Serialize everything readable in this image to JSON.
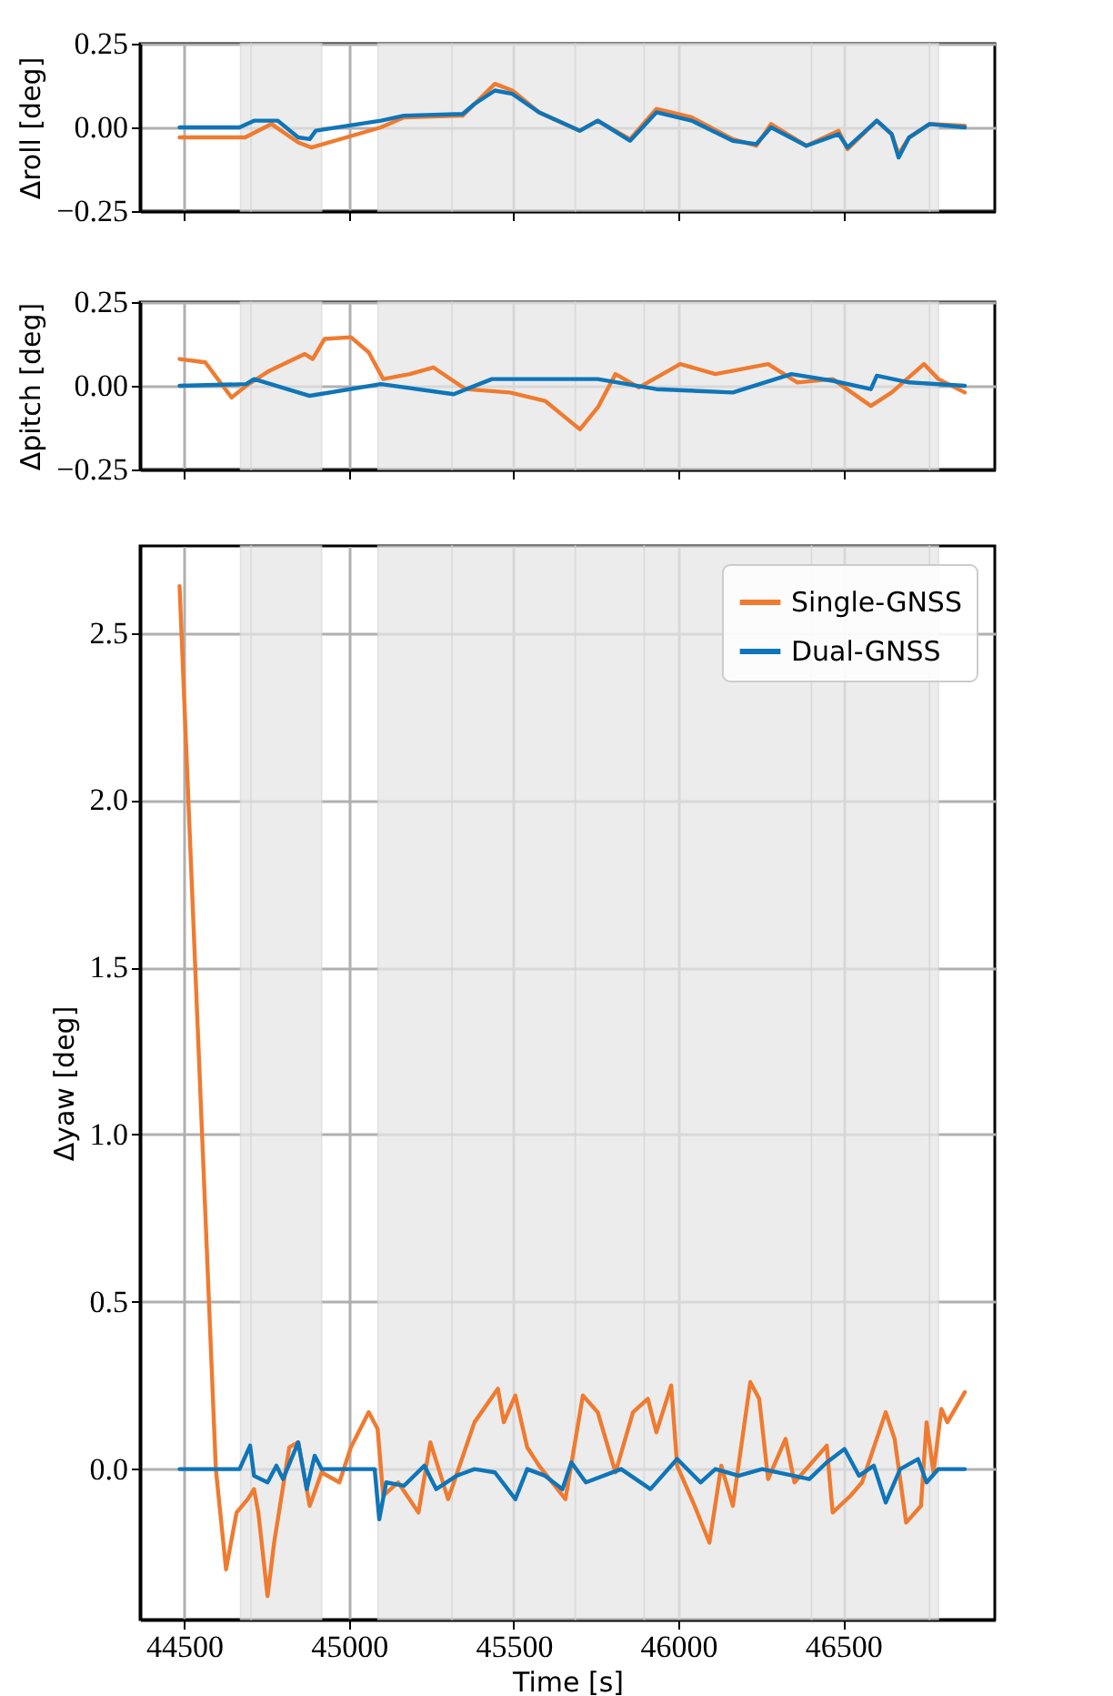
{
  "chart_data": [
    {
      "type": "line",
      "ylabel": "Δroll [deg]",
      "xlim": [
        44366,
        46960
      ],
      "xticks": [
        44500,
        45000,
        45500,
        46000,
        46500
      ],
      "ylim": [
        -0.25,
        0.25
      ],
      "yticks": [
        {
          "value": -0.25,
          "label": "−0.25"
        },
        {
          "value": 0,
          "label": "0.00"
        },
        0.25
      ],
      "tick_labels": "y",
      "grid": true,
      "legend": false,
      "line_style": "solid",
      "bands": [
        {
          "axis": "x",
          "from": 44671,
          "to": 44703,
          "color": "#e6e6e6"
        },
        {
          "axis": "x",
          "from": 44703,
          "to": 44917,
          "color": "#e6e6e6"
        },
        {
          "axis": "x",
          "from": 45088,
          "to": 45313,
          "color": "#e6e6e6"
        },
        {
          "axis": "x",
          "from": 45313,
          "to": 45687,
          "color": "#e6e6e6"
        },
        {
          "axis": "x",
          "from": 45687,
          "to": 45896,
          "color": "#e6e6e6"
        },
        {
          "axis": "x",
          "from": 45896,
          "to": 46404,
          "color": "#e6e6e6"
        },
        {
          "axis": "x",
          "from": 46404,
          "to": 46762,
          "color": "#e6e6e6"
        },
        {
          "axis": "x",
          "from": 46762,
          "to": 46789,
          "color": "#e6e6e6"
        }
      ],
      "series": [
        {
          "color": "#ef7b30",
          "x": [
            44486,
            44685,
            44765,
            44846,
            44886,
            45097,
            45167,
            45345,
            45381,
            45443,
            45496,
            45577,
            45701,
            45755,
            45853,
            45933,
            46040,
            46165,
            46236,
            46281,
            46388,
            46486,
            46513,
            46602,
            46647,
            46668,
            46700,
            46762,
            46869
          ],
          "values": [
            -0.03,
            -0.03,
            0.01,
            -0.045,
            -0.06,
            0,
            0.03,
            0.035,
            0.07,
            0.13,
            0.11,
            0.045,
            -0.01,
            0.02,
            -0.035,
            0.055,
            0.03,
            -0.035,
            -0.055,
            0.01,
            -0.055,
            -0.01,
            -0.065,
            0.02,
            -0.02,
            -0.08,
            -0.03,
            0.01,
            0.005
          ]
        },
        {
          "color": "#0f75b8",
          "x": [
            44486,
            44668,
            44712,
            44784,
            44846,
            44881,
            44899,
            45097,
            45167,
            45345,
            45381,
            45443,
            45496,
            45577,
            45701,
            45755,
            45853,
            45933,
            46040,
            46165,
            46236,
            46281,
            46388,
            46486,
            46513,
            46602,
            46647,
            46668,
            46700,
            46762,
            46869
          ],
          "values": [
            0,
            0,
            0.02,
            0.02,
            -0.03,
            -0.035,
            -0.01,
            0.02,
            0.035,
            0.04,
            0.07,
            0.11,
            0.1,
            0.045,
            -0.01,
            0.02,
            -0.04,
            0.045,
            0.02,
            -0.04,
            -0.05,
            0,
            -0.055,
            -0.02,
            -0.06,
            0.02,
            -0.02,
            -0.09,
            -0.03,
            0.01,
            0
          ]
        }
      ]
    },
    {
      "type": "line",
      "ylabel": "Δpitch [deg]",
      "xlim": [
        44366,
        46960
      ],
      "xticks": [
        44500,
        45000,
        45500,
        46000,
        46500
      ],
      "ylim": [
        -0.25,
        0.25
      ],
      "yticks": [
        {
          "value": -0.25,
          "label": "−0.25"
        },
        {
          "value": 0,
          "label": "0.00"
        },
        0.25
      ],
      "tick_labels": "y",
      "grid": true,
      "legend": false,
      "line_style": "solid",
      "bands": [
        {
          "axis": "x",
          "from": 44671,
          "to": 44703,
          "color": "#e6e6e6"
        },
        {
          "axis": "x",
          "from": 44703,
          "to": 44917,
          "color": "#e6e6e6"
        },
        {
          "axis": "x",
          "from": 45088,
          "to": 45313,
          "color": "#e6e6e6"
        },
        {
          "axis": "x",
          "from": 45313,
          "to": 45687,
          "color": "#e6e6e6"
        },
        {
          "axis": "x",
          "from": 45687,
          "to": 45896,
          "color": "#e6e6e6"
        },
        {
          "axis": "x",
          "from": 45896,
          "to": 46404,
          "color": "#e6e6e6"
        },
        {
          "axis": "x",
          "from": 46404,
          "to": 46762,
          "color": "#e6e6e6"
        },
        {
          "axis": "x",
          "from": 46762,
          "to": 46789,
          "color": "#e6e6e6"
        }
      ],
      "series": [
        {
          "color": "#ef7b30",
          "x": [
            44486,
            44564,
            44644,
            44688,
            44759,
            44866,
            44890,
            44926,
            45006,
            45060,
            45104,
            45185,
            45256,
            45354,
            45488,
            45595,
            45701,
            45755,
            45809,
            45880,
            46005,
            46112,
            46272,
            46361,
            46468,
            46584,
            46647,
            46745,
            46789,
            46869
          ],
          "values": [
            0.08,
            0.07,
            -0.035,
            0,
            0.045,
            0.095,
            0.08,
            0.14,
            0.145,
            0.1,
            0.02,
            0.035,
            0.055,
            -0.01,
            -0.02,
            -0.045,
            -0.13,
            -0.065,
            0.035,
            -0.005,
            0.065,
            0.035,
            0.065,
            0.01,
            0.02,
            -0.06,
            -0.02,
            0.065,
            0.02,
            -0.02
          ]
        },
        {
          "color": "#0f75b8",
          "x": [
            44486,
            44688,
            44712,
            44881,
            45097,
            45318,
            45434,
            45755,
            45933,
            46165,
            46343,
            46468,
            46584,
            46602,
            46700,
            46869
          ],
          "values": [
            0,
            0.005,
            0.02,
            -0.03,
            0.005,
            -0.025,
            0.02,
            0.02,
            -0.01,
            -0.02,
            0.035,
            0.015,
            -0.01,
            0.03,
            0.01,
            0
          ]
        }
      ]
    },
    {
      "type": "line",
      "xlabel": "Time [s]",
      "ylabel": "Δyaw [deg]",
      "xlim": [
        44366,
        46960
      ],
      "xticks": [
        44500,
        45000,
        45500,
        46000,
        46500
      ],
      "ylim": [
        -0.45,
        2.76
      ],
      "yticks": [
        {
          "value": 0,
          "label": "0.0"
        },
        0.5,
        {
          "value": 1,
          "label": "1.0"
        },
        1.5,
        {
          "value": 2,
          "label": "2.0"
        },
        2.5
      ],
      "grid": true,
      "legend": "top right",
      "line_style": "solid",
      "bands": [
        {
          "axis": "x",
          "from": 44671,
          "to": 44703,
          "color": "#e6e6e6"
        },
        {
          "axis": "x",
          "from": 44703,
          "to": 44917,
          "color": "#e6e6e6"
        },
        {
          "axis": "x",
          "from": 45088,
          "to": 45313,
          "color": "#e6e6e6"
        },
        {
          "axis": "x",
          "from": 45313,
          "to": 45687,
          "color": "#e6e6e6"
        },
        {
          "axis": "x",
          "from": 45687,
          "to": 45896,
          "color": "#e6e6e6"
        },
        {
          "axis": "x",
          "from": 45896,
          "to": 46404,
          "color": "#e6e6e6"
        },
        {
          "axis": "x",
          "from": 46404,
          "to": 46762,
          "color": "#e6e6e6"
        },
        {
          "axis": "x",
          "from": 46762,
          "to": 46789,
          "color": "#e6e6e6"
        }
      ],
      "series": [
        {
          "name": "Single-GNSS",
          "color": "#ef7b30",
          "x": [
            44486,
            44596,
            44627,
            44659,
            44693,
            44712,
            44725,
            44753,
            44773,
            44819,
            44846,
            44881,
            44917,
            44971,
            45006,
            45060,
            45087,
            45104,
            45149,
            45211,
            45247,
            45301,
            45381,
            45452,
            45470,
            45505,
            45541,
            45577,
            45657,
            45710,
            45755,
            45809,
            45862,
            45907,
            45933,
            45978,
            45996,
            46049,
            46094,
            46130,
            46165,
            46218,
            46245,
            46272,
            46325,
            46352,
            46450,
            46468,
            46522,
            46557,
            46629,
            46656,
            46691,
            46736,
            46753,
            46774,
            46798,
            46816,
            46869
          ],
          "values": [
            2.64,
            0,
            -0.3,
            -0.13,
            -0.09,
            -0.06,
            -0.13,
            -0.38,
            -0.22,
            0.065,
            0.08,
            -0.11,
            -0.01,
            -0.04,
            0.065,
            0.17,
            0.12,
            -0.08,
            -0.04,
            -0.13,
            0.08,
            -0.09,
            0.14,
            0.24,
            0.14,
            0.22,
            0.065,
            0.01,
            -0.09,
            0.22,
            0.17,
            -0.01,
            0.17,
            0.21,
            0.11,
            0.25,
            0.01,
            -0.11,
            -0.22,
            0.01,
            -0.11,
            0.26,
            0.21,
            -0.03,
            0.09,
            -0.04,
            0.07,
            -0.13,
            -0.08,
            -0.04,
            0.17,
            0.09,
            -0.16,
            -0.11,
            0.14,
            -0.01,
            0.18,
            0.14,
            0.23
          ]
        },
        {
          "name": "Dual-GNSS",
          "color": "#0f75b8",
          "x": [
            44486,
            44668,
            44700,
            44712,
            44753,
            44780,
            44800,
            44846,
            44872,
            44896,
            44917,
            45078,
            45092,
            45113,
            45167,
            45229,
            45265,
            45327,
            45381,
            45443,
            45505,
            45541,
            45595,
            45648,
            45675,
            45719,
            45826,
            45915,
            45996,
            46067,
            46112,
            46183,
            46254,
            46397,
            46450,
            46504,
            46548,
            46593,
            46629,
            46673,
            46727,
            46753,
            46789,
            46869
          ],
          "values": [
            0,
            0,
            0.07,
            -0.02,
            -0.04,
            0.01,
            -0.03,
            0.08,
            -0.06,
            0.04,
            0,
            0,
            -0.15,
            -0.04,
            -0.05,
            0.01,
            -0.06,
            -0.02,
            0,
            -0.01,
            -0.09,
            0,
            -0.02,
            -0.06,
            0.02,
            -0.04,
            0,
            -0.06,
            0.03,
            -0.04,
            0,
            -0.02,
            0,
            -0.03,
            0.02,
            0.06,
            -0.02,
            0.01,
            -0.1,
            0,
            0.03,
            -0.04,
            0,
            0
          ]
        }
      ]
    }
  ]
}
